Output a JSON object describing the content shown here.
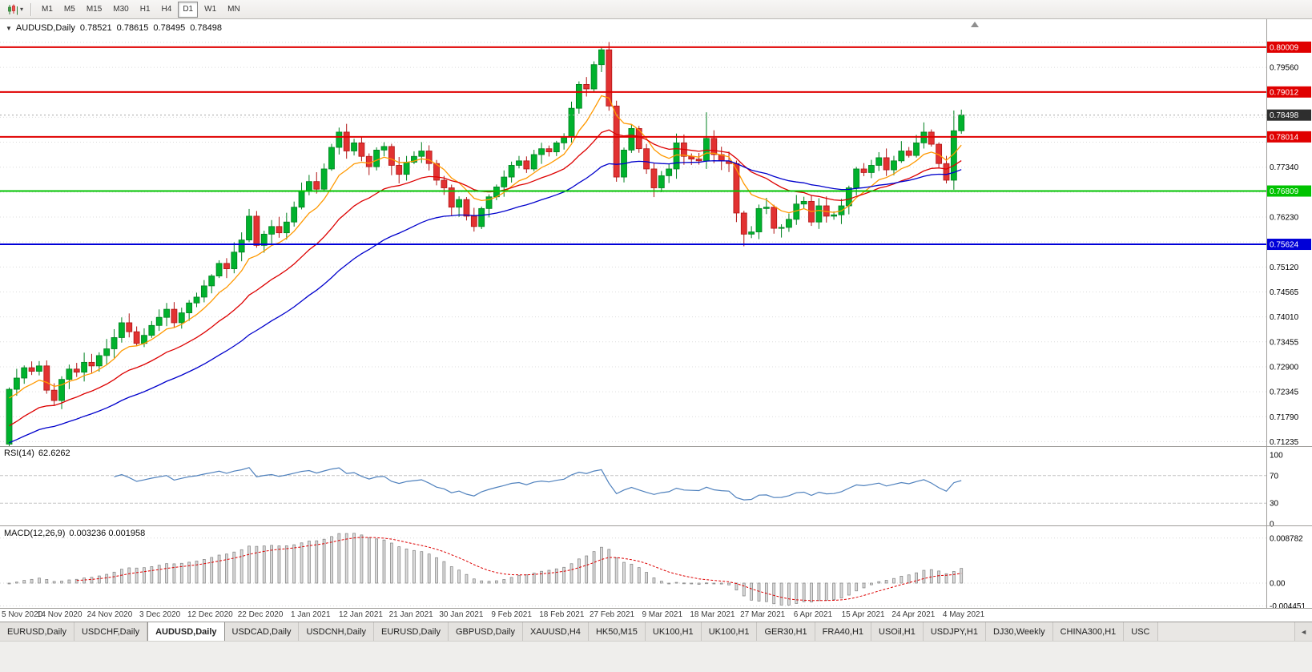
{
  "icons": {
    "collapse": "▼",
    "dropdown": "▾",
    "tab_scroll_left": "◄"
  },
  "toolbar": {
    "timeframes": [
      {
        "label": "M1",
        "active": false
      },
      {
        "label": "M5",
        "active": false
      },
      {
        "label": "M15",
        "active": false
      },
      {
        "label": "M30",
        "active": false
      },
      {
        "label": "H1",
        "active": false
      },
      {
        "label": "H4",
        "active": false
      },
      {
        "label": "D1",
        "active": true
      },
      {
        "label": "W1",
        "active": false
      },
      {
        "label": "MN",
        "active": false
      }
    ]
  },
  "chart_header": {
    "symbol_period": "AUDUSD,Daily",
    "open": "0.78521",
    "high": "0.78615",
    "low": "0.78495",
    "close": "0.78498"
  },
  "tabs": {
    "items": [
      {
        "label": "EURUSD,Daily",
        "active": false
      },
      {
        "label": "USDCHF,Daily",
        "active": false
      },
      {
        "label": "AUDUSD,Daily",
        "active": true
      },
      {
        "label": "USDCAD,Daily",
        "active": false
      },
      {
        "label": "USDCNH,Daily",
        "active": false
      },
      {
        "label": "EURUSD,Daily",
        "active": false
      },
      {
        "label": "GBPUSD,Daily",
        "active": false
      },
      {
        "label": "XAUUSD,H4",
        "active": false
      },
      {
        "label": "HK50,M15",
        "active": false
      },
      {
        "label": "UK100,H1",
        "active": false
      },
      {
        "label": "UK100,H1",
        "active": false
      },
      {
        "label": "GER30,H1",
        "active": false
      },
      {
        "label": "FRA40,H1",
        "active": false
      },
      {
        "label": "USOil,H1",
        "active": false
      },
      {
        "label": "USDJPY,H1",
        "active": false
      },
      {
        "label": "DJ30,Weekly",
        "active": false
      },
      {
        "label": "CHINA300,H1",
        "active": false
      },
      {
        "label": "USC",
        "active": false
      }
    ]
  },
  "chart_data": {
    "type": "candlestick",
    "symbol": "AUDUSD",
    "timeframe": "Daily",
    "up_color": "#00b22d",
    "up_stroke": "#00811f",
    "down_color": "#e23232",
    "down_stroke": "#b01414",
    "x_labels": [
      "5 Nov 2020",
      "14 Nov 2020",
      "24 Nov 2020",
      "3 Dec 2020",
      "12 Dec 2020",
      "22 Dec 2020",
      "1 Jan 2021",
      "12 Jan 2021",
      "21 Jan 2021",
      "30 Jan 2021",
      "9 Feb 2021",
      "18 Feb 2021",
      "27 Feb 2021",
      "9 Mar 2021",
      "18 Mar 2021",
      "27 Mar 2021",
      "6 Apr 2021",
      "15 Apr 2021",
      "24 Apr 2021",
      "4 May 2021"
    ],
    "first_open": 0.7118,
    "closes": [
      0.724,
      0.7265,
      0.7288,
      0.728,
      0.7292,
      0.7238,
      0.7215,
      0.7262,
      0.7285,
      0.7278,
      0.73,
      0.7292,
      0.7315,
      0.733,
      0.7355,
      0.7388,
      0.7368,
      0.7342,
      0.736,
      0.7382,
      0.74,
      0.7418,
      0.7388,
      0.741,
      0.7432,
      0.7445,
      0.747,
      0.7492,
      0.752,
      0.7508,
      0.7545,
      0.7572,
      0.7625,
      0.756,
      0.7585,
      0.7602,
      0.7588,
      0.7612,
      0.7645,
      0.7682,
      0.7702,
      0.7685,
      0.773,
      0.7778,
      0.7812,
      0.777,
      0.7788,
      0.7758,
      0.7735,
      0.7772,
      0.778,
      0.7738,
      0.7718,
      0.7745,
      0.7758,
      0.777,
      0.7742,
      0.7705,
      0.7688,
      0.7645,
      0.7662,
      0.7625,
      0.7602,
      0.7642,
      0.7668,
      0.769,
      0.7712,
      0.7738,
      0.7748,
      0.773,
      0.7762,
      0.7775,
      0.7768,
      0.7788,
      0.7802,
      0.7865,
      0.7918,
      0.7908,
      0.7962,
      0.7995,
      0.787,
      0.7712,
      0.7772,
      0.782,
      0.7775,
      0.773,
      0.7688,
      0.7715,
      0.773,
      0.7788,
      0.7758,
      0.7752,
      0.7748,
      0.7798,
      0.7762,
      0.7748,
      0.7742,
      0.7632,
      0.7585,
      0.759,
      0.7642,
      0.7645,
      0.7598,
      0.76,
      0.7618,
      0.7652,
      0.7658,
      0.7612,
      0.7648,
      0.7625,
      0.7628,
      0.7648,
      0.7688,
      0.773,
      0.7722,
      0.7738,
      0.7755,
      0.7728,
      0.7748,
      0.777,
      0.776,
      0.7788,
      0.7812,
      0.7785,
      0.7742,
      0.7705,
      0.7815,
      0.785
    ],
    "wick_overrides": {
      "0": {
        "low": 0.7113
      },
      "6": {
        "low": 0.7205
      },
      "32": {
        "high": 0.7641
      },
      "44": {
        "high": 0.7822
      },
      "79": {
        "high": 0.8001
      },
      "93": {
        "high": 0.7856
      },
      "98": {
        "low": 0.7558
      },
      "126": {
        "high": 0.786
      },
      "127": {
        "high": 0.7862
      }
    },
    "price_axis": {
      "top": 0.8063,
      "pixels_per_unit": 5614,
      "ticks": [
        "0.80115",
        "0.79560",
        "0.79005",
        "0.78450",
        "0.77895",
        "0.77340",
        "0.76785",
        "0.76230",
        "0.75675",
        "0.75120",
        "0.74565",
        "0.74010",
        "0.73455",
        "0.72900",
        "0.72345",
        "0.71790",
        "0.71235"
      ]
    },
    "levels": [
      {
        "price": 0.80009,
        "label": "0.80009",
        "color": "#e00000"
      },
      {
        "price": 0.79012,
        "label": "0.79012",
        "color": "#e00000"
      },
      {
        "price": 0.78014,
        "label": "0.78014",
        "color": "#e00000"
      },
      {
        "price": 0.76809,
        "label": "0.76809",
        "color": "#00c300"
      },
      {
        "price": 0.75624,
        "label": "0.75624",
        "color": "#0000d8"
      }
    ],
    "bid": {
      "price": 0.78498,
      "label": "0.78498",
      "badge_color": "#2e2e2e",
      "line_color": "#a8a8a8"
    },
    "moving_averages": [
      {
        "name": "fast-ma",
        "period": 8,
        "seed": 0.7215,
        "color": "#ff9900"
      },
      {
        "name": "medium-ma",
        "period": 20,
        "seed": 0.715,
        "color": "#dd0000"
      },
      {
        "name": "slow-ma",
        "period": 40,
        "seed": 0.7115,
        "color": "#0000cc"
      }
    ],
    "rsi": {
      "label": "RSI(14)",
      "display_value": "62.6262",
      "period": 14,
      "levels": [
        70,
        30
      ],
      "ticks": [
        "100",
        "70",
        "30",
        "0"
      ],
      "color": "#4f81bd"
    },
    "macd": {
      "label": "MACD(12,26,9)",
      "display_values": "0.003236 0.001958",
      "fast": 12,
      "slow": 26,
      "signal": 9,
      "ticks": [
        "0.008782",
        "0.00",
        "-0.004451"
      ],
      "tick_values": [
        0.008782,
        0,
        -0.004451
      ],
      "signal_color": "#dd0000",
      "hist_fill": "#d9d9d9",
      "hist_stroke": "#858585"
    }
  }
}
